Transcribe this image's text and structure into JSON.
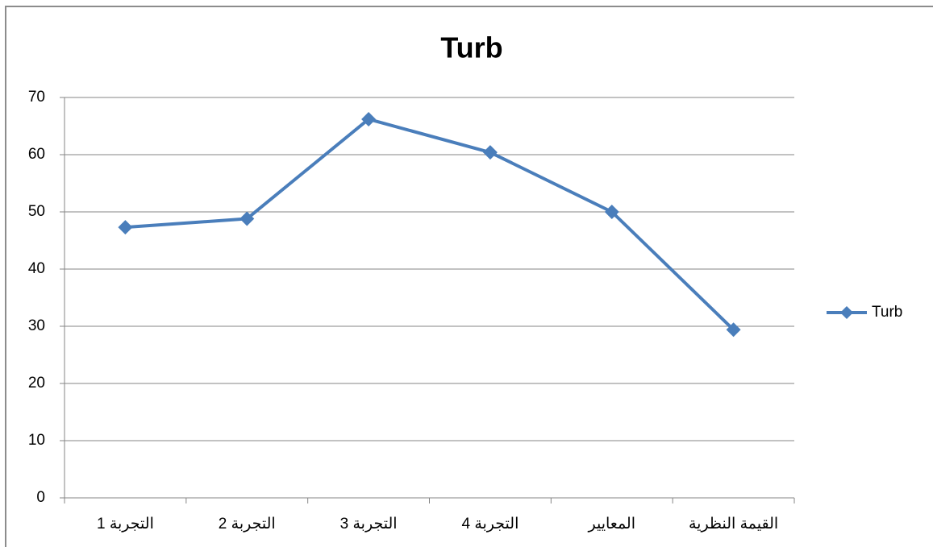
{
  "chart_data": {
    "type": "line",
    "title": "Turb",
    "categories": [
      "التجربة 1",
      "التجربة 2",
      "التجربة 3",
      "التجربة 4",
      "المعايير",
      "القيمة النظرية"
    ],
    "series": [
      {
        "name": "Turb",
        "color": "#4a7ebb",
        "values": [
          47.3,
          48.8,
          66.2,
          60.4,
          50,
          29.4
        ]
      }
    ],
    "ylim": [
      0,
      70
    ],
    "yticks": [
      0,
      10,
      20,
      30,
      40,
      50,
      60,
      70
    ],
    "grid": true,
    "legend": "right"
  }
}
